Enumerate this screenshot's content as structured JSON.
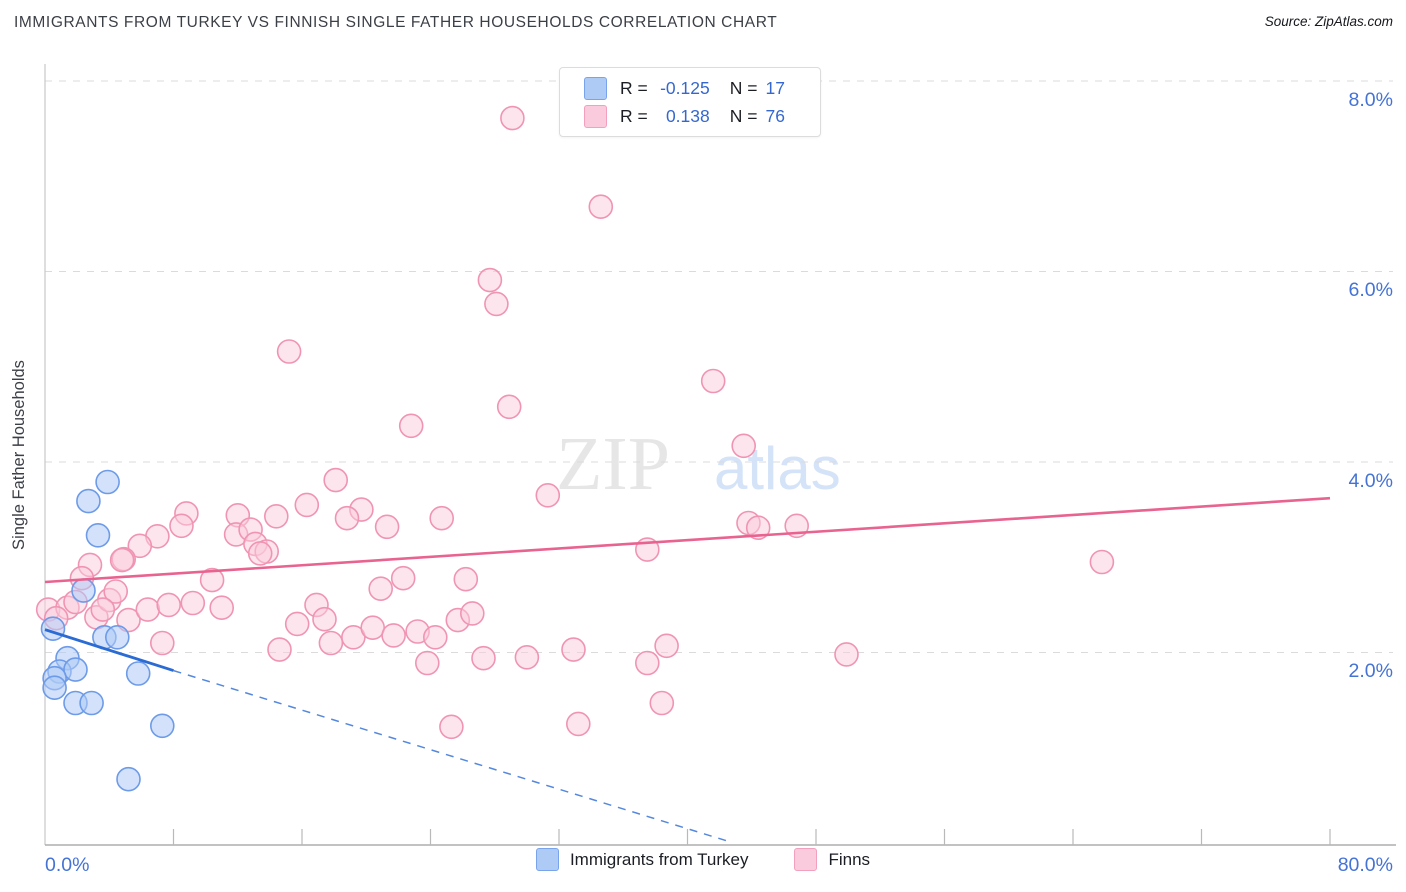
{
  "header": {
    "title": "IMMIGRANTS FROM TURKEY VS FINNISH SINGLE FATHER HOUSEHOLDS CORRELATION CHART",
    "source": "Source: ZipAtlas.com"
  },
  "correlation_legend": {
    "rows": [
      {
        "series": "Immigrants from Turkey",
        "r_label": "R =",
        "r_value": "-0.125",
        "n_label": "N =",
        "n_value": "17"
      },
      {
        "series": "Finns",
        "r_label": "R =",
        "r_value": "0.138",
        "n_label": "N =",
        "n_value": "76"
      }
    ]
  },
  "watermark": {
    "part1": "ZIP",
    "part2": "atlas"
  },
  "axes": {
    "y_axis_label": "Single Father Households",
    "y_ticks": [
      "8.0%",
      "6.0%",
      "4.0%",
      "2.0%"
    ],
    "x_first_label": "0.0%",
    "x_last_label": "80.0%"
  },
  "bottom_legend": {
    "items": [
      {
        "label": "Immigrants from Turkey"
      },
      {
        "label": "Finns"
      }
    ]
  },
  "colors": {
    "blue_fill": "#AECBF5",
    "blue_stroke": "#6D9BE8",
    "pink_fill": "#F9CBDC",
    "pink_stroke": "#F094B4",
    "blue_trend": "#2B6BD4",
    "pink_trend": "#E8638F",
    "axis_label_blue": "#4573D5"
  },
  "chart_data": {
    "type": "scatter",
    "title": "IMMIGRANTS FROM TURKEY VS FINNISH SINGLE FATHER HOUSEHOLDS CORRELATION CHART",
    "ylabel": "Single Father Households",
    "xlim": [
      0,
      80
    ],
    "ylim": [
      0,
      8.38
    ],
    "x_tick_step": 8,
    "y_tick_values": [
      2,
      4,
      6,
      8
    ],
    "grid": "dashed horizontal",
    "legend_position": "bottom-center",
    "series": [
      {
        "name": "Immigrants from Turkey",
        "R": -0.125,
        "N": 17,
        "points": [
          [
            0.5,
            2.25
          ],
          [
            2.4,
            2.65
          ],
          [
            2.7,
            3.59
          ],
          [
            3.9,
            3.79
          ],
          [
            3.3,
            3.23
          ],
          [
            1.4,
            1.94
          ],
          [
            0.9,
            1.8
          ],
          [
            1.9,
            1.82
          ],
          [
            0.6,
            1.73
          ],
          [
            0.6,
            1.63
          ],
          [
            1.9,
            1.47
          ],
          [
            2.9,
            1.47
          ],
          [
            3.7,
            2.16
          ],
          [
            4.5,
            2.16
          ],
          [
            5.8,
            1.78
          ],
          [
            7.3,
            1.23
          ],
          [
            5.2,
            0.67
          ]
        ]
      },
      {
        "name": "Finns",
        "R": 0.138,
        "N": 76,
        "points": [
          [
            29.1,
            7.61
          ],
          [
            34.6,
            6.68
          ],
          [
            27.7,
            5.91
          ],
          [
            28.1,
            5.66
          ],
          [
            15.2,
            5.16
          ],
          [
            22.8,
            4.38
          ],
          [
            28.9,
            4.58
          ],
          [
            41.6,
            4.85
          ],
          [
            43.5,
            4.17
          ],
          [
            18.1,
            3.81
          ],
          [
            16.3,
            3.55
          ],
          [
            19.7,
            3.5
          ],
          [
            18.8,
            3.41
          ],
          [
            21.3,
            3.32
          ],
          [
            24.7,
            3.41
          ],
          [
            31.3,
            3.65
          ],
          [
            43.8,
            3.36
          ],
          [
            44.4,
            3.31
          ],
          [
            46.8,
            3.33
          ],
          [
            37.5,
            3.08
          ],
          [
            65.8,
            2.95
          ],
          [
            8.8,
            3.46
          ],
          [
            8.5,
            3.33
          ],
          [
            7.0,
            3.22
          ],
          [
            5.9,
            3.12
          ],
          [
            4.9,
            2.98
          ],
          [
            2.8,
            2.92
          ],
          [
            12.0,
            3.44
          ],
          [
            11.9,
            3.24
          ],
          [
            12.8,
            3.29
          ],
          [
            13.1,
            3.14
          ],
          [
            13.8,
            3.06
          ],
          [
            14.4,
            3.43
          ],
          [
            10.4,
            2.76
          ],
          [
            20.9,
            2.67
          ],
          [
            22.3,
            2.78
          ],
          [
            26.2,
            2.77
          ],
          [
            16.9,
            2.5
          ],
          [
            15.7,
            2.3
          ],
          [
            17.4,
            2.35
          ],
          [
            17.8,
            2.1
          ],
          [
            19.2,
            2.16
          ],
          [
            20.4,
            2.26
          ],
          [
            21.7,
            2.18
          ],
          [
            23.2,
            2.22
          ],
          [
            24.3,
            2.16
          ],
          [
            25.7,
            2.34
          ],
          [
            26.6,
            2.41
          ],
          [
            27.3,
            1.94
          ],
          [
            23.8,
            1.89
          ],
          [
            30.0,
            1.95
          ],
          [
            32.9,
            2.03
          ],
          [
            38.7,
            2.07
          ],
          [
            37.5,
            1.89
          ],
          [
            49.9,
            1.98
          ],
          [
            38.4,
            1.47
          ],
          [
            33.2,
            1.25
          ],
          [
            25.3,
            1.22
          ],
          [
            14.6,
            2.03
          ],
          [
            0.2,
            2.45
          ],
          [
            1.4,
            2.47
          ],
          [
            1.9,
            2.53
          ],
          [
            0.7,
            2.36
          ],
          [
            3.2,
            2.37
          ],
          [
            4.0,
            2.55
          ],
          [
            4.4,
            2.64
          ],
          [
            3.6,
            2.45
          ],
          [
            5.2,
            2.34
          ],
          [
            6.4,
            2.45
          ],
          [
            7.3,
            2.1
          ],
          [
            4.8,
            2.97
          ],
          [
            2.3,
            2.78
          ],
          [
            7.7,
            2.5
          ],
          [
            9.2,
            2.52
          ],
          [
            11.0,
            2.47
          ],
          [
            13.4,
            3.04
          ]
        ]
      }
    ],
    "trend_lines": [
      {
        "series": "Immigrants from Turkey",
        "solid": [
          [
            0,
            2.24
          ],
          [
            8,
            1.81
          ]
        ],
        "dashed": [
          [
            8,
            1.81
          ],
          [
            42.5,
            0.02
          ]
        ]
      },
      {
        "series": "Finns",
        "solid": [
          [
            0,
            2.74
          ],
          [
            80,
            3.62
          ]
        ]
      }
    ]
  }
}
